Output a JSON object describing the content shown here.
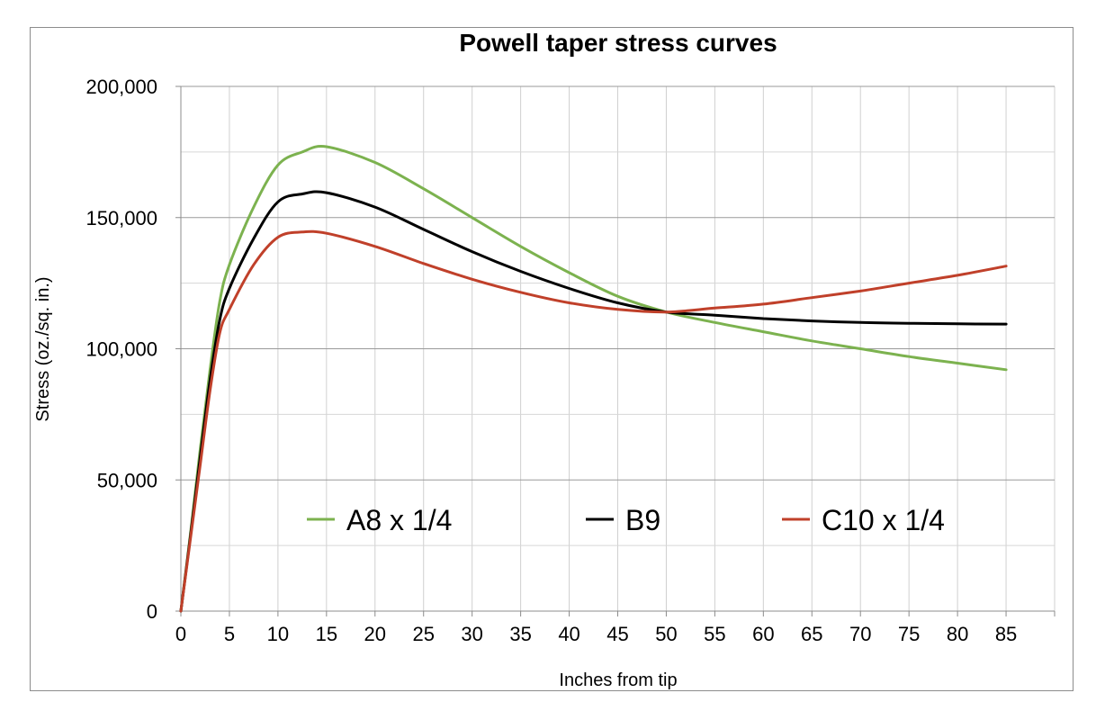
{
  "chart_data": {
    "type": "line",
    "title": "Powell taper stress curves",
    "xlabel": "Inches from tip",
    "ylabel": "Stress (oz./sq. in.)",
    "xlim": [
      0,
      90
    ],
    "ylim": [
      0,
      200000
    ],
    "x_ticks": [
      "0",
      "5",
      "10",
      "15",
      "20",
      "25",
      "30",
      "35",
      "40",
      "45",
      "50",
      "55",
      "60",
      "65",
      "70",
      "75",
      "80",
      "85"
    ],
    "y_ticks": [
      "0",
      "50,000",
      "100,000",
      "150,000",
      "200,000"
    ],
    "grid": true,
    "legend_position": "lower-center inside plot",
    "x": [
      0,
      1,
      2,
      3,
      4,
      5,
      7.5,
      10,
      12.5,
      15,
      20,
      25,
      30,
      35,
      40,
      45,
      50,
      55,
      60,
      65,
      70,
      75,
      80,
      85
    ],
    "series": [
      {
        "name": "A8 x 1/4",
        "color": "#7cb24f",
        "values": [
          0,
          30000,
          62000,
          92000,
          118000,
          132000,
          154000,
          170000,
          175000,
          177000,
          171000,
          161000,
          150000,
          139000,
          129000,
          120000,
          114000,
          110000,
          106500,
          103000,
          100000,
          97000,
          94500,
          92000
        ]
      },
      {
        "name": "B9",
        "color": "#000000",
        "values": [
          0,
          29000,
          59000,
          88000,
          111000,
          123000,
          142000,
          156000,
          159000,
          159500,
          154000,
          145500,
          137000,
          129500,
          123000,
          117500,
          114000,
          112800,
          111500,
          110600,
          110000,
          109700,
          109500,
          109400
        ]
      },
      {
        "name": "C10 x 1/4",
        "color": "#c0402a",
        "values": [
          0,
          28000,
          56000,
          84000,
          106000,
          115000,
          132000,
          142500,
          144500,
          144000,
          139000,
          132500,
          126500,
          121500,
          117500,
          115000,
          114000,
          115500,
          117000,
          119500,
          122000,
          125000,
          128000,
          131500
        ]
      }
    ]
  }
}
